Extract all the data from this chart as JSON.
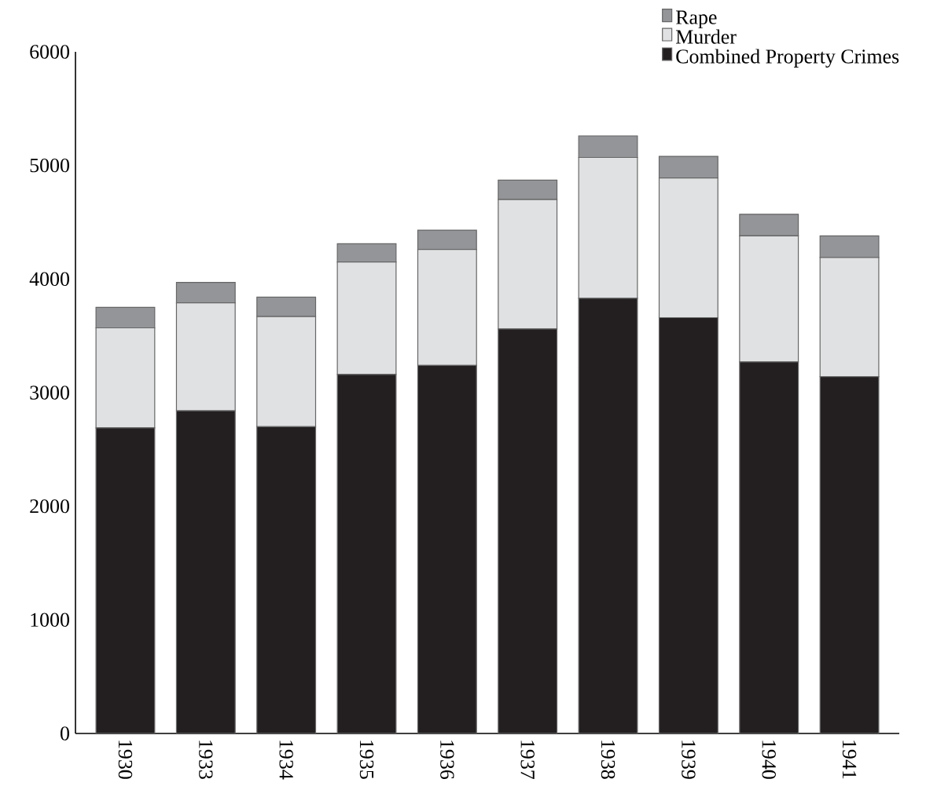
{
  "chart_data": {
    "type": "bar",
    "stacked": true,
    "categories": [
      "1930",
      "1933",
      "1934",
      "1935",
      "1936",
      "1937",
      "1938",
      "1939",
      "1940",
      "1941"
    ],
    "series": [
      {
        "name": "Combined Property Crimes",
        "color": "#231f20",
        "values": [
          2690,
          2840,
          2700,
          3160,
          3240,
          3560,
          3830,
          3660,
          3270,
          3140
        ]
      },
      {
        "name": "Murder",
        "color": "#e0e1e3",
        "values": [
          880,
          950,
          970,
          990,
          1020,
          1140,
          1240,
          1230,
          1110,
          1050
        ]
      },
      {
        "name": "Rape",
        "color": "#939598",
        "values": [
          180,
          180,
          170,
          160,
          170,
          170,
          190,
          190,
          190,
          190
        ]
      }
    ],
    "ylim": [
      0,
      6000
    ],
    "yticks": [
      0,
      1000,
      2000,
      3000,
      4000,
      5000,
      6000
    ],
    "legend": "top right",
    "grid": false
  }
}
